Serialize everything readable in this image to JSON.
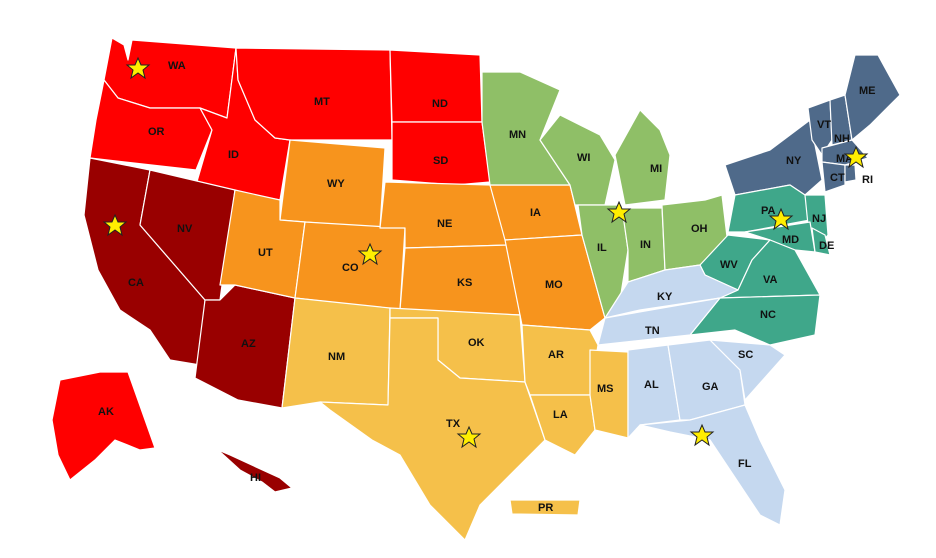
{
  "regions": [
    {
      "id": "northwest",
      "color": "#ff0000"
    },
    {
      "id": "west",
      "color": "#990000"
    },
    {
      "id": "mountain-plains",
      "color": "#f7941d"
    },
    {
      "id": "southwest",
      "color": "#f5c04a"
    },
    {
      "id": "midwest",
      "color": "#8fbf67"
    },
    {
      "id": "northeast",
      "color": "#4f6a8a"
    },
    {
      "id": "mid-atlantic",
      "color": "#3fa78a"
    },
    {
      "id": "southeast",
      "color": "#c5d8ef"
    }
  ],
  "states": {
    "WA": "WA",
    "OR": "OR",
    "ID": "ID",
    "MT": "MT",
    "ND": "ND",
    "SD": "SD",
    "WY": "WY",
    "NV": "NV",
    "CA": "CA",
    "UT": "UT",
    "CO": "CO",
    "NE": "NE",
    "KS": "KS",
    "AZ": "AZ",
    "NM": "NM",
    "OK": "OK",
    "TX": "TX",
    "MN": "MN",
    "IA": "IA",
    "MO": "MO",
    "AR": "AR",
    "LA": "LA",
    "WI": "WI",
    "MI": "MI",
    "IL": "IL",
    "IN": "IN",
    "OH": "OH",
    "KY": "KY",
    "TN": "TN",
    "MS": "MS",
    "AL": "AL",
    "GA": "GA",
    "FL": "FL",
    "SC": "SC",
    "NC": "NC",
    "VA": "VA",
    "WV": "WV",
    "PA": "PA",
    "MD": "MD",
    "DE": "DE",
    "NJ": "NJ",
    "NY": "NY",
    "VT": "VT",
    "NH": "NH",
    "ME": "ME",
    "MA": "MA",
    "CT": "CT",
    "RI": "RI",
    "AK": "AK",
    "HI": "HI",
    "PR": "PR"
  },
  "star_locations": [
    "WA",
    "CA",
    "CO",
    "TX",
    "IL",
    "PA",
    "MA",
    "GA"
  ],
  "star_icon": "star-icon"
}
